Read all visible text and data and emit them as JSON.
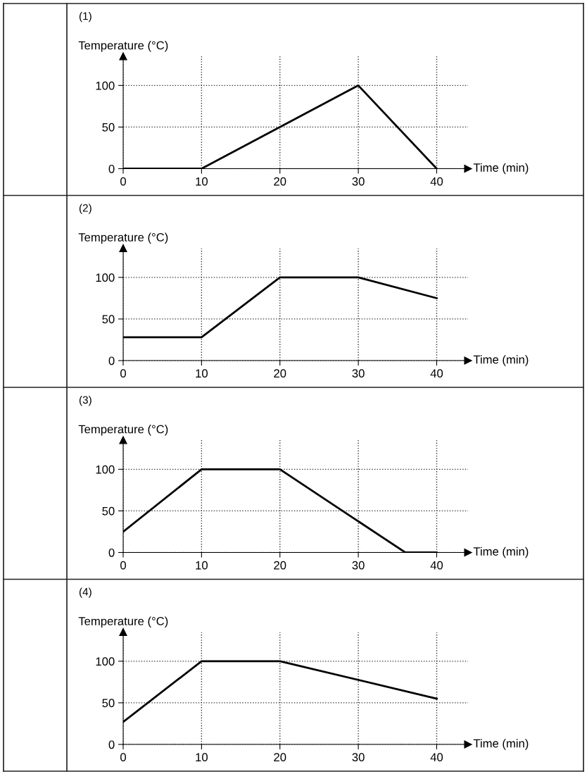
{
  "chart_data": [
    {
      "type": "line",
      "title": "(1)",
      "xlabel": "Time (min)",
      "ylabel": "Temperature (°C)",
      "x": [
        0,
        10,
        30,
        40
      ],
      "series": [
        {
          "color": "#000000",
          "values": [
            0,
            0,
            100,
            0
          ]
        }
      ],
      "xlim": [
        0,
        44
      ],
      "ylim": [
        0,
        135
      ],
      "xticks": [
        0,
        10,
        20,
        30,
        40
      ],
      "yticks": [
        0,
        50,
        100
      ],
      "grid": true
    },
    {
      "type": "line",
      "title": "(2)",
      "xlabel": "Time (min)",
      "ylabel": "Temperature (°C)",
      "x": [
        0,
        10,
        20,
        30,
        40
      ],
      "series": [
        {
          "color": "#000000",
          "values": [
            28,
            28,
            100,
            100,
            75
          ]
        }
      ],
      "xlim": [
        0,
        44
      ],
      "ylim": [
        0,
        135
      ],
      "xticks": [
        0,
        10,
        20,
        30,
        40
      ],
      "yticks": [
        0,
        50,
        100
      ],
      "grid": true
    },
    {
      "type": "line",
      "title": "(3)",
      "xlabel": "Time (min)",
      "ylabel": "Temperature (°C)",
      "x": [
        0,
        10,
        20,
        36,
        40
      ],
      "series": [
        {
          "color": "#000000",
          "values": [
            25,
            100,
            100,
            0,
            0
          ]
        }
      ],
      "xlim": [
        0,
        44
      ],
      "ylim": [
        0,
        135
      ],
      "xticks": [
        0,
        10,
        20,
        30,
        40
      ],
      "yticks": [
        0,
        50,
        100
      ],
      "grid": true
    },
    {
      "type": "line",
      "title": "(4)",
      "xlabel": "Time (min)",
      "ylabel": "Temperature (°C)",
      "x": [
        0,
        10,
        20,
        40
      ],
      "series": [
        {
          "color": "#000000",
          "values": [
            27,
            100,
            100,
            55
          ]
        }
      ],
      "xlim": [
        0,
        44
      ],
      "ylim": [
        0,
        135
      ],
      "xticks": [
        0,
        10,
        20,
        30,
        40
      ],
      "yticks": [
        0,
        50,
        100
      ],
      "grid": true
    }
  ]
}
